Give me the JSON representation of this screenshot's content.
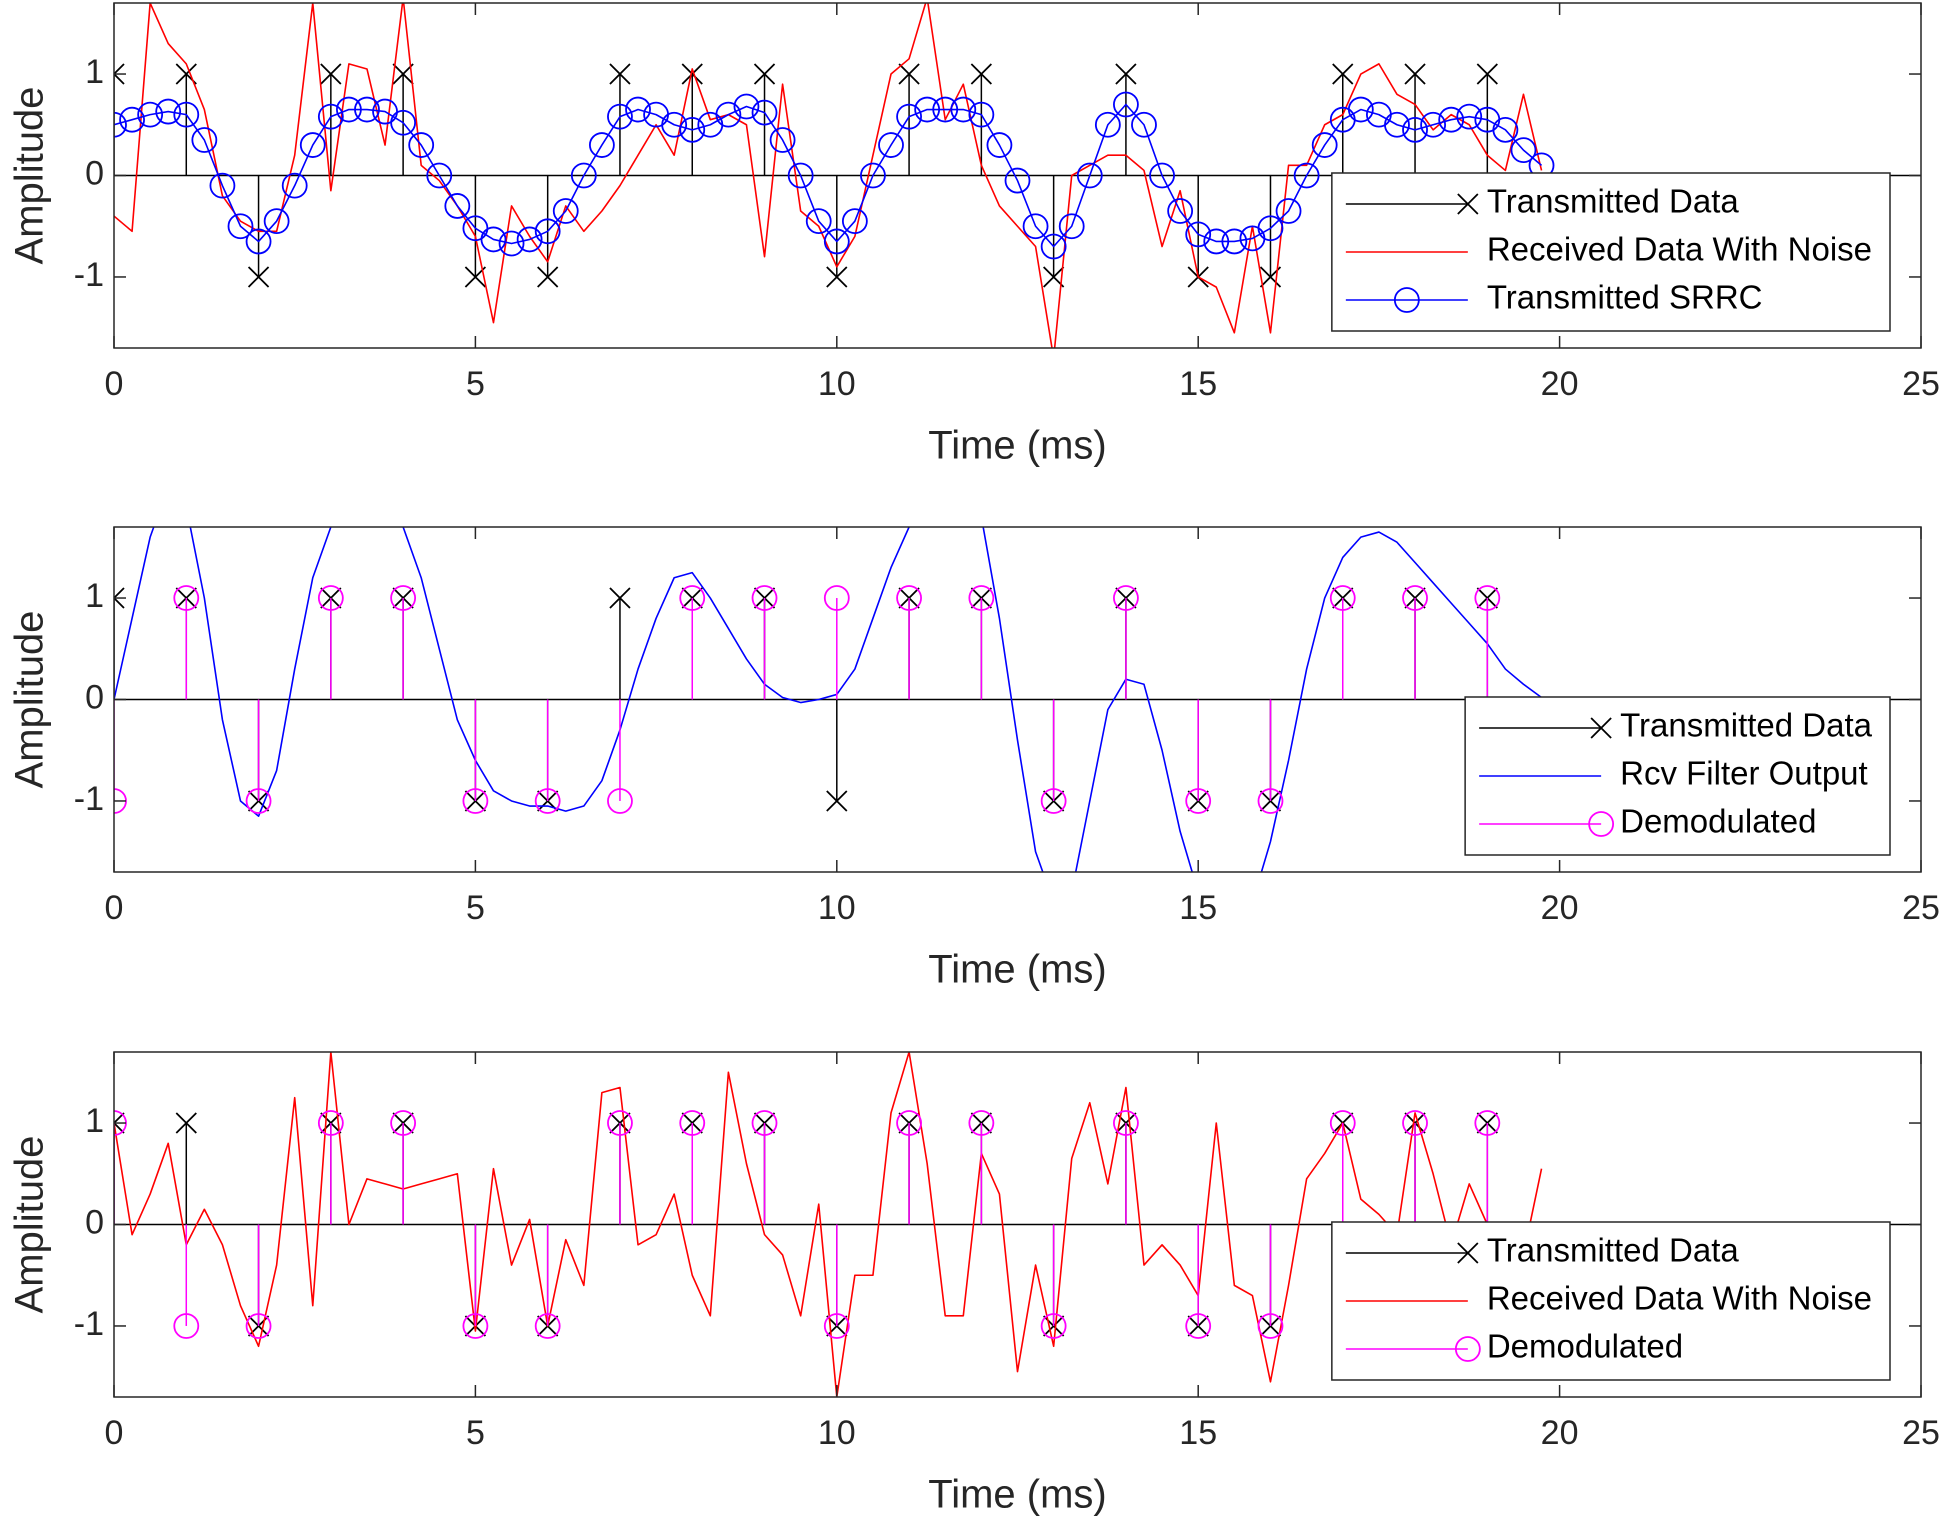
{
  "chart_data": [
    {
      "type": "line",
      "xlabel": "Time (ms)",
      "ylabel": "Amplitude",
      "xlim": [
        0,
        25
      ],
      "ylim": [
        -1.7,
        1.7
      ],
      "xticks": [
        0,
        5,
        10,
        15,
        20,
        25
      ],
      "yticks": [
        -1,
        0,
        1
      ],
      "legend": "southeast",
      "series": [
        {
          "name": "Transmitted Data",
          "color": "#000000",
          "style": "stem",
          "marker": "x",
          "x": [
            0,
            1,
            2,
            3,
            4,
            5,
            6,
            7,
            8,
            9,
            10,
            11,
            12,
            13,
            14,
            15,
            16,
            17,
            18,
            19
          ],
          "values": [
            1,
            1,
            -1,
            1,
            1,
            -1,
            -1,
            1,
            1,
            1,
            -1,
            1,
            1,
            -1,
            1,
            -1,
            -1,
            1,
            1,
            1
          ]
        },
        {
          "name": "Received Data With Noise",
          "color": "#ff0000",
          "style": "line",
          "marker": null,
          "x": [
            0,
            0.25,
            0.5,
            0.75,
            1,
            1.25,
            1.5,
            1.75,
            2,
            2.25,
            2.5,
            2.75,
            3,
            3.25,
            3.5,
            3.75,
            4,
            4.25,
            4.5,
            4.75,
            5,
            5.25,
            5.5,
            5.75,
            6,
            6.25,
            6.5,
            6.75,
            7,
            7.25,
            7.5,
            7.75,
            8,
            8.25,
            8.5,
            8.75,
            9,
            9.25,
            9.5,
            9.75,
            10,
            10.25,
            10.5,
            10.75,
            11,
            11.25,
            11.5,
            11.75,
            12,
            12.25,
            12.5,
            12.75,
            13,
            13.25,
            13.5,
            13.75,
            14,
            14.25,
            14.5,
            14.75,
            15,
            15.25,
            15.5,
            15.75,
            16,
            16.25,
            16.5,
            16.75,
            17,
            17.25,
            17.5,
            17.75,
            18,
            18.25,
            18.5,
            18.75,
            19,
            19.25,
            19.5,
            19.75
          ],
          "values": [
            -0.4,
            -0.55,
            1.7,
            1.3,
            1.1,
            0.65,
            -0.2,
            -0.45,
            -0.55,
            -0.55,
            0.2,
            1.7,
            -0.15,
            1.1,
            1.05,
            0.3,
            1.75,
            0.1,
            -0.05,
            -0.3,
            -0.6,
            -1.45,
            -0.3,
            -0.6,
            -0.85,
            -0.3,
            -0.55,
            -0.35,
            -0.1,
            0.2,
            0.5,
            0.2,
            1.05,
            0.55,
            0.6,
            0.5,
            -0.8,
            0.9,
            -0.35,
            -0.5,
            -0.9,
            -0.6,
            0.2,
            1.0,
            1.15,
            1.75,
            0.55,
            0.9,
            0.1,
            -0.3,
            -0.5,
            -0.7,
            -1.8,
            0.0,
            0.1,
            0.2,
            0.2,
            0.05,
            -0.7,
            -0.15,
            -1.0,
            -1.1,
            -1.55,
            -0.5,
            -1.55,
            0.1,
            0.1,
            0.5,
            0.6,
            1.0,
            1.1,
            0.8,
            0.7,
            0.45,
            0.6,
            0.5,
            0.2,
            0.05,
            0.8,
            0.05
          ]
        },
        {
          "name": "Transmitted SRRC",
          "color": "#0000ff",
          "style": "line",
          "marker": "o",
          "x": [
            0,
            0.25,
            0.5,
            0.75,
            1,
            1.25,
            1.5,
            1.75,
            2,
            2.25,
            2.5,
            2.75,
            3,
            3.25,
            3.5,
            3.75,
            4,
            4.25,
            4.5,
            4.75,
            5,
            5.25,
            5.5,
            5.75,
            6,
            6.25,
            6.5,
            6.75,
            7,
            7.25,
            7.5,
            7.75,
            8,
            8.25,
            8.5,
            8.75,
            9,
            9.25,
            9.5,
            9.75,
            10,
            10.25,
            10.5,
            10.75,
            11,
            11.25,
            11.5,
            11.75,
            12,
            12.25,
            12.5,
            12.75,
            13,
            13.25,
            13.5,
            13.75,
            14,
            14.25,
            14.5,
            14.75,
            15,
            15.25,
            15.5,
            15.75,
            16,
            16.25,
            16.5,
            16.75,
            17,
            17.25,
            17.5,
            17.75,
            18,
            18.25,
            18.5,
            18.75,
            19,
            19.25,
            19.5,
            19.75
          ],
          "values": [
            0.5,
            0.55,
            0.6,
            0.63,
            0.6,
            0.35,
            -0.1,
            -0.5,
            -0.65,
            -0.45,
            -0.1,
            0.3,
            0.58,
            0.65,
            0.65,
            0.63,
            0.52,
            0.3,
            0.0,
            -0.3,
            -0.52,
            -0.63,
            -0.67,
            -0.63,
            -0.55,
            -0.35,
            0.0,
            0.3,
            0.58,
            0.65,
            0.6,
            0.5,
            0.45,
            0.5,
            0.6,
            0.68,
            0.62,
            0.35,
            0.0,
            -0.45,
            -0.65,
            -0.45,
            0.0,
            0.3,
            0.58,
            0.65,
            0.65,
            0.65,
            0.6,
            0.3,
            -0.05,
            -0.5,
            -0.7,
            -0.5,
            0.0,
            0.5,
            0.7,
            0.5,
            0.0,
            -0.35,
            -0.58,
            -0.65,
            -0.65,
            -0.62,
            -0.52,
            -0.35,
            0.0,
            0.3,
            0.55,
            0.65,
            0.6,
            0.5,
            0.45,
            0.5,
            0.55,
            0.58,
            0.55,
            0.45,
            0.25,
            0.1
          ]
        }
      ]
    },
    {
      "type": "line",
      "xlabel": "Time (ms)",
      "ylabel": "Amplitude",
      "xlim": [
        0,
        25
      ],
      "ylim": [
        -1.7,
        1.7
      ],
      "xticks": [
        0,
        5,
        10,
        15,
        20,
        25
      ],
      "yticks": [
        -1,
        0,
        1
      ],
      "legend": "southeast",
      "series": [
        {
          "name": "Transmitted Data",
          "color": "#000000",
          "style": "stem",
          "marker": "x",
          "x": [
            0,
            1,
            2,
            3,
            4,
            5,
            6,
            7,
            8,
            9,
            10,
            11,
            12,
            13,
            14,
            15,
            16,
            17,
            18,
            19
          ],
          "values": [
            1,
            1,
            -1,
            1,
            1,
            -1,
            -1,
            1,
            1,
            1,
            -1,
            1,
            1,
            -1,
            1,
            -1,
            -1,
            1,
            1,
            1
          ]
        },
        {
          "name": "Rcv Filter Output",
          "color": "#0000ff",
          "style": "line",
          "marker": null,
          "x": [
            0,
            0.25,
            0.5,
            0.75,
            1,
            1.25,
            1.5,
            1.75,
            2,
            2.25,
            2.5,
            2.75,
            3,
            3.25,
            3.5,
            3.75,
            4,
            4.25,
            4.5,
            4.75,
            5,
            5.25,
            5.5,
            5.75,
            6,
            6.25,
            6.5,
            6.75,
            7,
            7.25,
            7.5,
            7.75,
            8,
            8.25,
            8.5,
            8.75,
            9,
            9.25,
            9.5,
            9.75,
            10,
            10.25,
            10.5,
            10.75,
            11,
            11.25,
            11.5,
            11.75,
            12,
            12.25,
            12.5,
            12.75,
            13,
            13.25,
            13.5,
            13.75,
            14,
            14.25,
            14.5,
            14.75,
            15,
            15.25,
            15.5,
            15.75,
            16,
            16.25,
            16.5,
            16.75,
            17,
            17.25,
            17.5,
            17.75,
            18,
            18.25,
            18.5,
            18.75,
            19,
            19.25,
            19.5,
            19.75
          ],
          "values": [
            0,
            0.8,
            1.6,
            2.1,
            1.9,
            1.0,
            -0.2,
            -1.0,
            -1.15,
            -0.7,
            0.3,
            1.2,
            1.7,
            2.0,
            2.1,
            2.0,
            1.7,
            1.2,
            0.5,
            -0.2,
            -0.6,
            -0.9,
            -1.0,
            -1.05,
            -1.05,
            -1.1,
            -1.05,
            -0.8,
            -0.3,
            0.3,
            0.8,
            1.2,
            1.25,
            1.0,
            0.7,
            0.4,
            0.15,
            0.02,
            -0.03,
            0.0,
            0.05,
            0.3,
            0.8,
            1.3,
            1.7,
            2.1,
            2.3,
            2.2,
            1.8,
            0.8,
            -0.4,
            -1.5,
            -2.0,
            -1.9,
            -1.0,
            -0.1,
            0.2,
            0.15,
            -0.5,
            -1.3,
            -1.9,
            -2.2,
            -2.3,
            -2.0,
            -1.4,
            -0.6,
            0.3,
            1.0,
            1.4,
            1.6,
            1.65,
            1.55,
            1.35,
            1.15,
            0.95,
            0.75,
            0.55,
            0.3,
            0.15,
            0.02
          ]
        },
        {
          "name": "Demodulated",
          "color": "#ff00ff",
          "style": "stem",
          "marker": "o",
          "x": [
            0,
            1,
            2,
            3,
            4,
            5,
            6,
            7,
            8,
            9,
            10,
            11,
            12,
            13,
            14,
            15,
            16,
            17,
            18,
            19
          ],
          "values": [
            -1,
            1,
            -1,
            1,
            1,
            -1,
            -1,
            -1,
            1,
            1,
            1,
            1,
            1,
            -1,
            1,
            -1,
            -1,
            1,
            1,
            1
          ]
        }
      ]
    },
    {
      "type": "line",
      "xlabel": "Time (ms)",
      "ylabel": "Amplitude",
      "xlim": [
        0,
        25
      ],
      "ylim": [
        -1.7,
        1.7
      ],
      "xticks": [
        0,
        5,
        10,
        15,
        20,
        25
      ],
      "yticks": [
        -1,
        0,
        1
      ],
      "legend": "southeast",
      "series": [
        {
          "name": "Transmitted Data",
          "color": "#000000",
          "style": "stem",
          "marker": "x",
          "x": [
            0,
            1,
            2,
            3,
            4,
            5,
            6,
            7,
            8,
            9,
            10,
            11,
            12,
            13,
            14,
            15,
            16,
            17,
            18,
            19
          ],
          "values": [
            1,
            1,
            -1,
            1,
            1,
            -1,
            -1,
            1,
            1,
            1,
            -1,
            1,
            1,
            -1,
            1,
            -1,
            -1,
            1,
            1,
            1
          ]
        },
        {
          "name": "Received Data With Noise",
          "color": "#ff0000",
          "style": "line",
          "marker": null,
          "x": [
            0,
            0.25,
            0.5,
            0.75,
            1,
            1.25,
            1.5,
            1.75,
            2,
            2.25,
            2.5,
            2.75,
            3,
            3.25,
            3.5,
            3.75,
            4,
            4.25,
            4.5,
            4.75,
            5,
            5.25,
            5.5,
            5.75,
            6,
            6.25,
            6.5,
            6.75,
            7,
            7.25,
            7.5,
            7.75,
            8,
            8.25,
            8.5,
            8.75,
            9,
            9.25,
            9.5,
            9.75,
            10,
            10.25,
            10.5,
            10.75,
            11,
            11.25,
            11.5,
            11.75,
            12,
            12.25,
            12.5,
            12.75,
            13,
            13.25,
            13.5,
            13.75,
            14,
            14.25,
            14.5,
            14.75,
            15,
            15.25,
            15.5,
            15.75,
            16,
            16.25,
            16.5,
            16.75,
            17,
            17.25,
            17.5,
            17.75,
            18,
            18.25,
            18.5,
            18.75,
            19,
            19.25,
            19.5,
            19.75
          ],
          "values": [
            1.0,
            -0.1,
            0.3,
            0.8,
            -0.2,
            0.15,
            -0.2,
            -0.8,
            -1.2,
            -0.4,
            1.25,
            -0.8,
            1.7,
            0.0,
            0.45,
            0.4,
            0.35,
            0.4,
            0.45,
            0.5,
            -1.05,
            0.55,
            -0.4,
            0.05,
            -1.0,
            -0.15,
            -0.6,
            1.3,
            1.35,
            -0.2,
            -0.1,
            0.3,
            -0.5,
            -0.9,
            1.5,
            0.6,
            -0.1,
            -0.3,
            -0.9,
            0.2,
            -1.7,
            -0.5,
            -0.5,
            1.1,
            1.7,
            0.6,
            -0.9,
            -0.9,
            0.7,
            0.3,
            -1.45,
            -0.4,
            -1.2,
            0.65,
            1.2,
            0.4,
            1.35,
            -0.4,
            -0.2,
            -0.4,
            -0.7,
            1.0,
            -0.6,
            -0.7,
            -1.55,
            -0.6,
            0.45,
            0.7,
            1.0,
            0.25,
            0.1,
            -0.1,
            1.1,
            0.5,
            -0.2,
            0.4,
            0.0,
            -0.5,
            -0.3,
            0.55
          ]
        },
        {
          "name": "Demodulated",
          "color": "#ff00ff",
          "style": "stem",
          "marker": "o",
          "x": [
            0,
            1,
            2,
            3,
            4,
            5,
            6,
            7,
            8,
            9,
            10,
            11,
            12,
            13,
            14,
            15,
            16,
            17,
            18,
            19
          ],
          "values": [
            1,
            -1,
            -1,
            1,
            1,
            -1,
            -1,
            1,
            1,
            1,
            -1,
            1,
            1,
            -1,
            1,
            -1,
            -1,
            1,
            1,
            1
          ]
        }
      ]
    }
  ]
}
